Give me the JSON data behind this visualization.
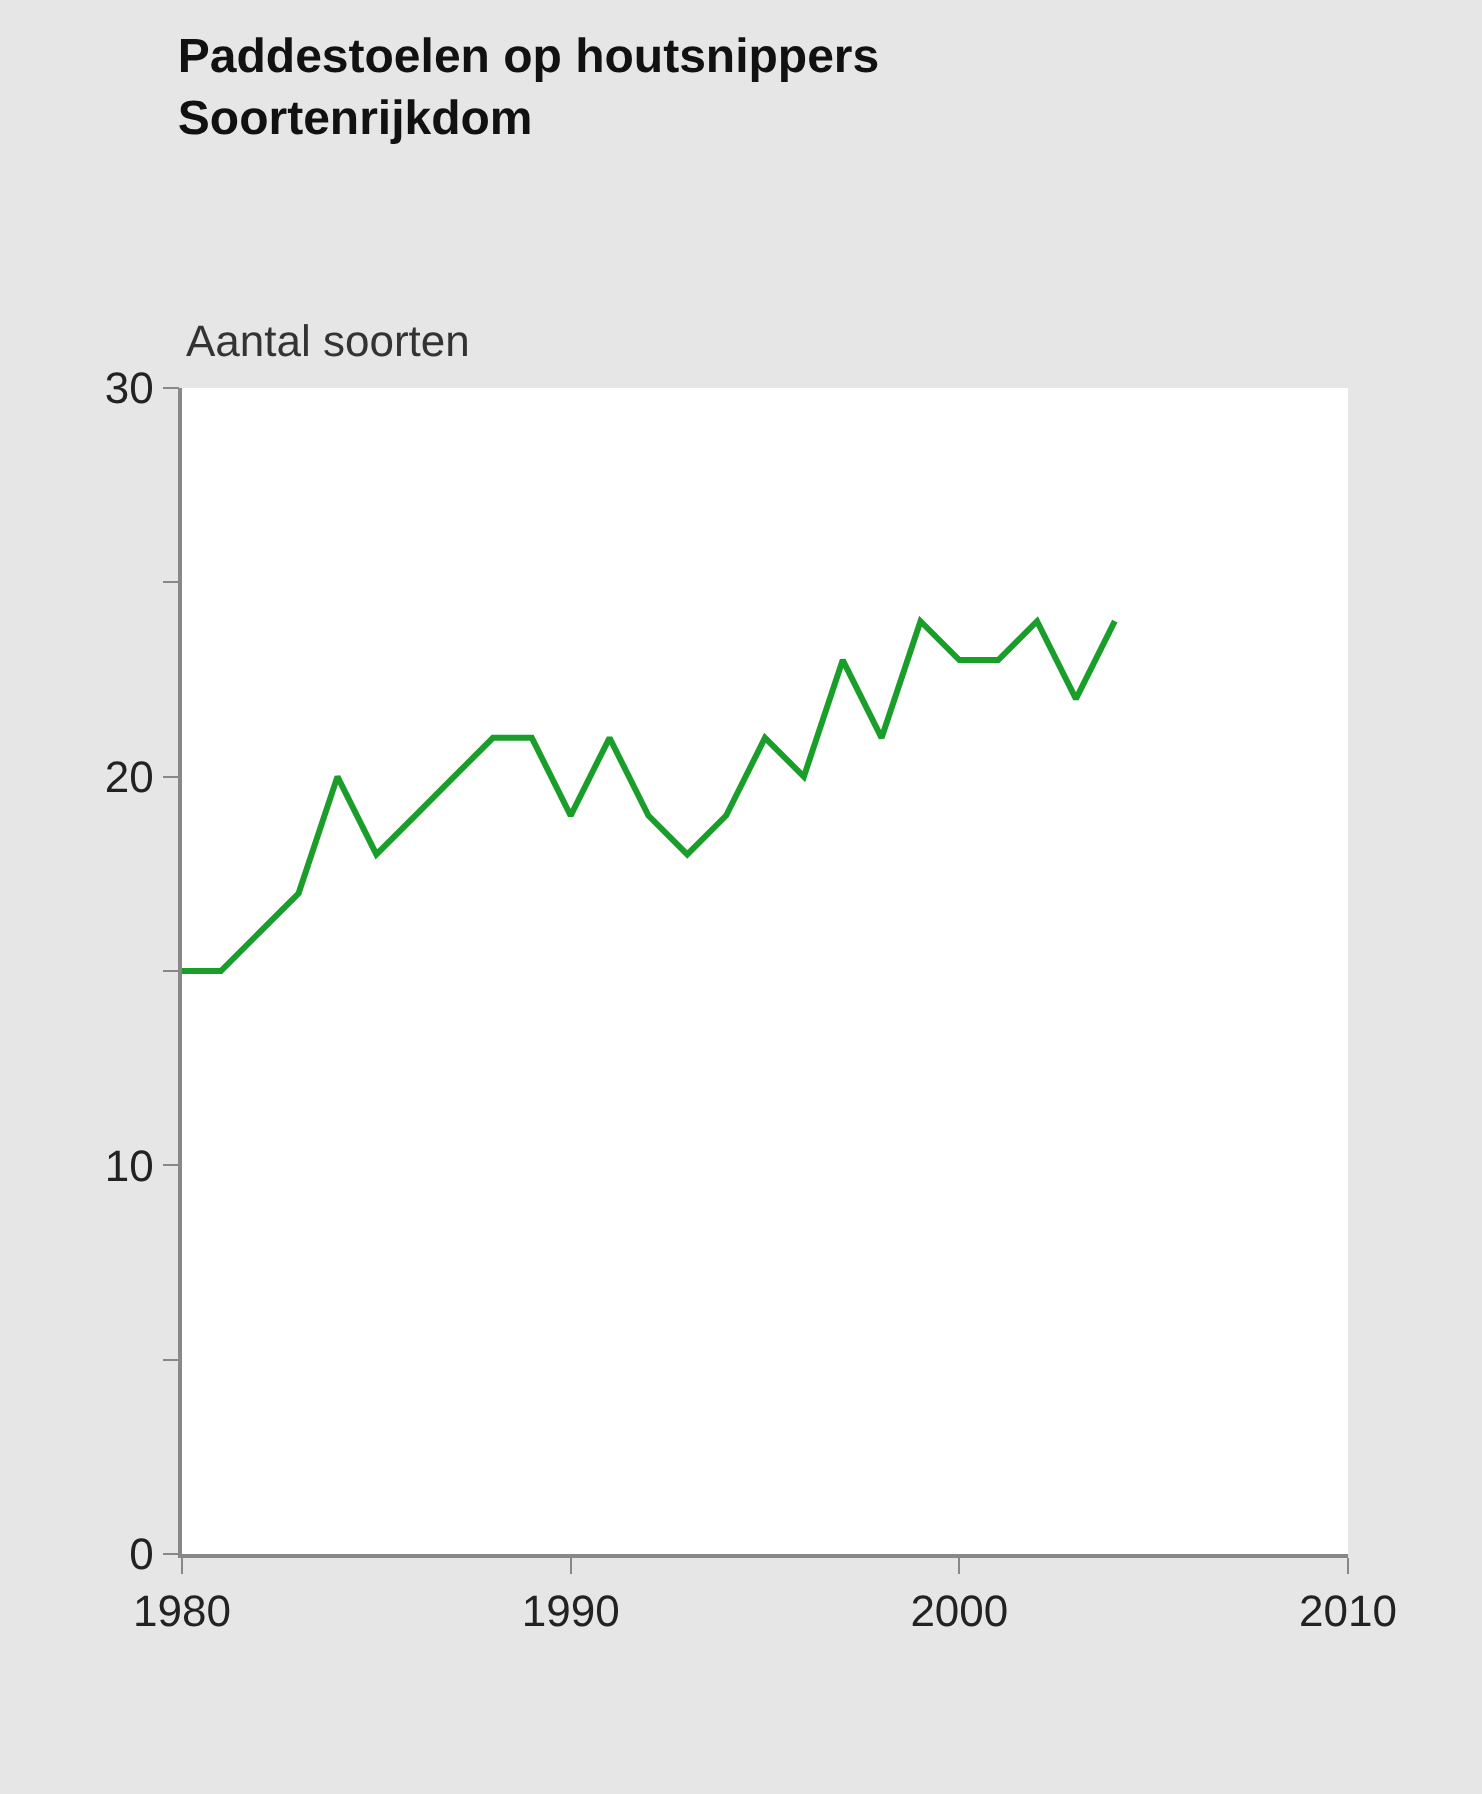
{
  "chart_data": {
    "type": "line",
    "title": "Paddestoelen op houtsnippers",
    "subtitle": "Soortenrijkdom",
    "ylabel": "Aantal soorten",
    "x": [
      1980,
      1981,
      1982,
      1983,
      1984,
      1985,
      1986,
      1987,
      1988,
      1989,
      1990,
      1991,
      1992,
      1993,
      1994,
      1995,
      1996,
      1997,
      1998,
      1999,
      2000,
      2001,
      2002,
      2003,
      2004
    ],
    "series": [
      {
        "color": "#1a9e2a",
        "values": [
          15,
          15,
          16,
          17,
          20,
          18,
          19,
          20,
          21,
          21,
          19,
          21,
          19,
          18,
          19,
          21,
          20,
          23,
          21,
          24,
          23,
          23,
          24,
          22,
          24
        ]
      }
    ],
    "xlim": [
      1980,
      2010
    ],
    "xticks": [
      1980,
      1990,
      2000,
      2010
    ],
    "ylim": [
      0,
      30
    ],
    "yticks": [
      0,
      {
        "value": 5,
        "label": null
      },
      10,
      {
        "value": 15,
        "label": null
      },
      20,
      {
        "value": 25,
        "label": null
      },
      30
    ],
    "legend": false,
    "marker": "none",
    "line_style": "solid"
  }
}
